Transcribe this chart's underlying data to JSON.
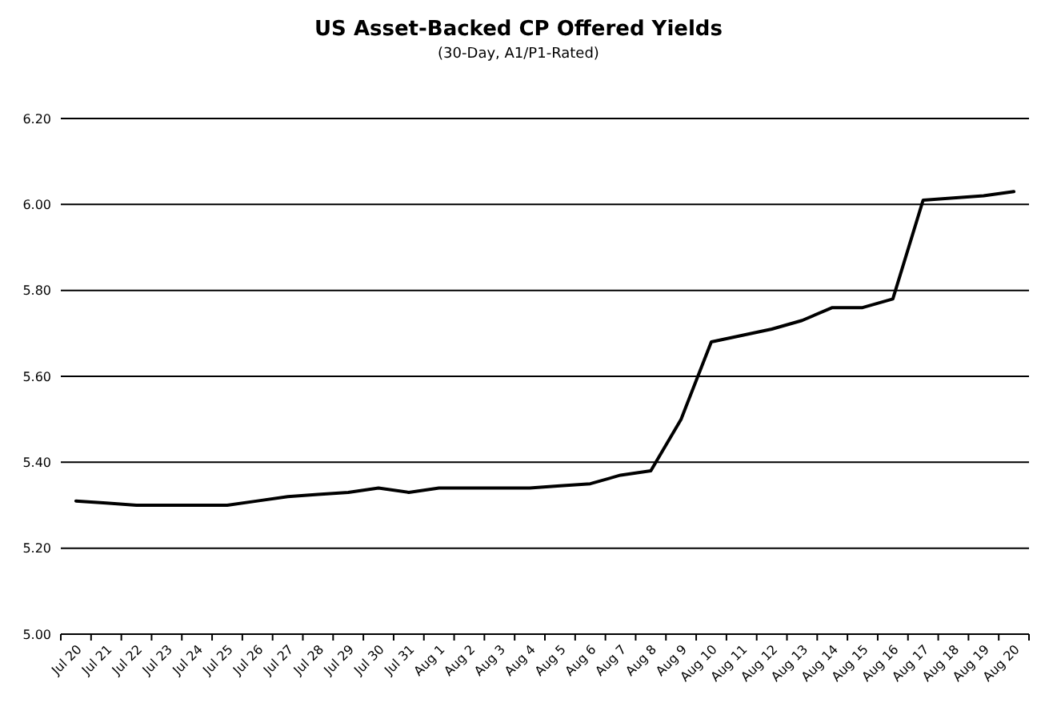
{
  "chart_data": {
    "type": "line",
    "title": "US Asset-Backed CP Offered Yields",
    "subtitle": "(30-Day, A1/P1-Rated)",
    "categories": [
      "Jul 20",
      "Jul 21",
      "Jul 22",
      "Jul 23",
      "Jul 24",
      "Jul 25",
      "Jul 26",
      "Jul 27",
      "Jul 28",
      "Jul 29",
      "Jul 30",
      "Jul 31",
      "Aug 1",
      "Aug 2",
      "Aug 3",
      "Aug 4",
      "Aug 5",
      "Aug 6",
      "Aug 7",
      "Aug 8",
      "Aug 9",
      "Aug 10",
      "Aug 11",
      "Aug 12",
      "Aug 13",
      "Aug 14",
      "Aug 15",
      "Aug 16",
      "Aug 17",
      "Aug 18",
      "Aug 19",
      "Aug 20"
    ],
    "series": [
      {
        "color": "#000000",
        "values": [
          5.31,
          5.305,
          5.3,
          5.3,
          5.3,
          5.3,
          5.31,
          5.32,
          5.325,
          5.33,
          5.34,
          5.33,
          5.34,
          5.34,
          5.34,
          5.34,
          5.345,
          5.35,
          5.37,
          5.38,
          5.5,
          5.68,
          5.695,
          5.71,
          5.73,
          5.76,
          5.76,
          5.78,
          6.01,
          6.015,
          6.02,
          6.03
        ]
      }
    ],
    "ylim": [
      5.0,
      6.2
    ],
    "yticks": [
      {
        "value": 5.0,
        "label": "5.00"
      },
      {
        "value": 5.2,
        "label": "5.20"
      },
      {
        "value": 5.4,
        "label": "5.40"
      },
      {
        "value": 5.6,
        "label": "5.60"
      },
      {
        "value": 5.8,
        "label": "5.80"
      },
      {
        "value": 6.0,
        "label": "6.00"
      },
      {
        "value": 6.2,
        "label": "6.20"
      }
    ],
    "grid": "y",
    "marker": "none",
    "line_style": "solid"
  }
}
